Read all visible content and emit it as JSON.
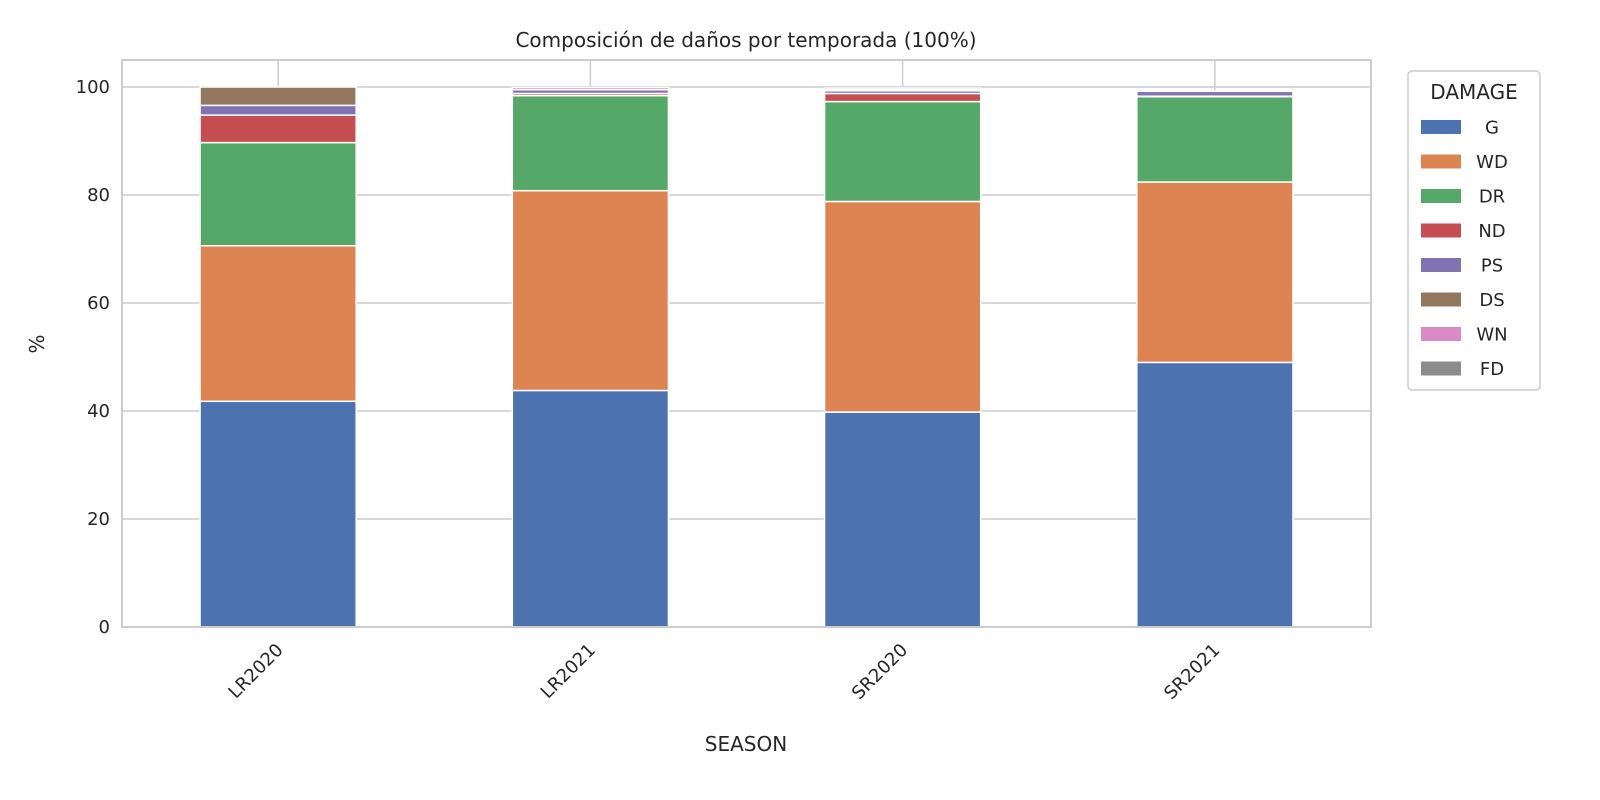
{
  "chart_data": {
    "type": "bar",
    "stacked": true,
    "title": "Composición de daños por temporada (100%)",
    "xlabel": "SEASON",
    "ylabel": "%",
    "ylim": [
      0,
      105
    ],
    "yticks": [
      0,
      20,
      40,
      60,
      80,
      100
    ],
    "grid": true,
    "legend_title": "DAMAGE",
    "legend_position": "outside-right-top",
    "categories": [
      "LR2020",
      "LR2021",
      "SR2020",
      "SR2021"
    ],
    "series": [
      {
        "name": "G",
        "color": "#4c72b0",
        "values": [
          41.8,
          43.8,
          39.8,
          49.0
        ]
      },
      {
        "name": "WD",
        "color": "#dd8452",
        "values": [
          28.8,
          37.0,
          39.0,
          33.4
        ]
      },
      {
        "name": "DR",
        "color": "#55a868",
        "values": [
          19.1,
          17.6,
          18.5,
          15.8
        ]
      },
      {
        "name": "ND",
        "color": "#c44e52",
        "values": [
          5.1,
          0.4,
          1.5,
          0.1
        ]
      },
      {
        "name": "PS",
        "color": "#8172b3",
        "values": [
          1.8,
          0.7,
          0.5,
          0.9
        ]
      },
      {
        "name": "DS",
        "color": "#937860",
        "values": [
          3.4,
          0.0,
          0.2,
          0.0
        ]
      },
      {
        "name": "WN",
        "color": "#da8bc3",
        "values": [
          0.0,
          0.4,
          0.3,
          0.0
        ]
      },
      {
        "name": "FD",
        "color": "#8c8c8c",
        "values": [
          0.0,
          0.0,
          0.0,
          0.0
        ]
      }
    ]
  }
}
